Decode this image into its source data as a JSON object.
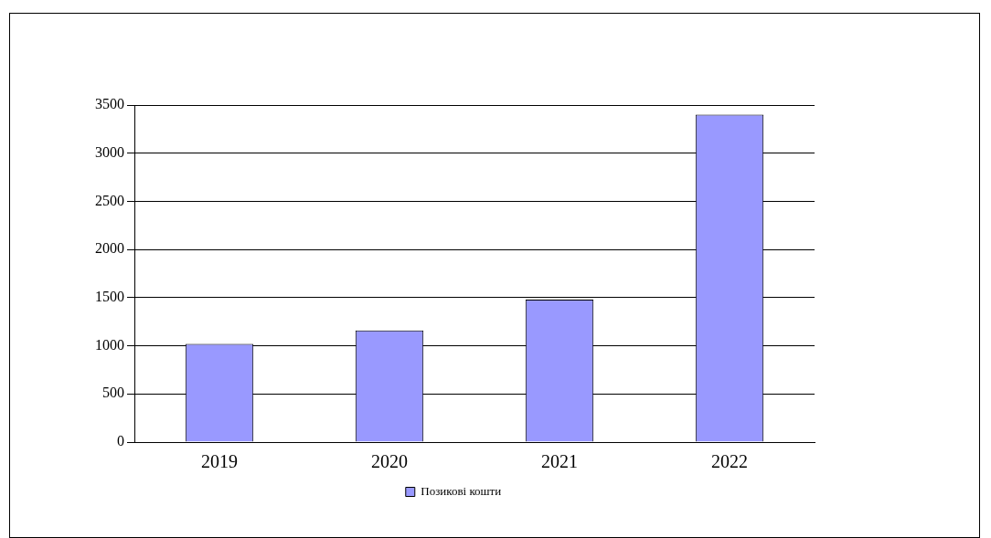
{
  "chart_data": {
    "type": "bar",
    "categories": [
      "2019",
      "2020",
      "2021",
      "2022"
    ],
    "series": [
      {
        "name": "Позикові кошти",
        "color": "#9999ff",
        "values": [
          1020,
          1160,
          1480,
          3400
        ]
      }
    ],
    "ylim": [
      0,
      3500
    ],
    "yticks": [
      0,
      500,
      1000,
      1500,
      2000,
      2500,
      3000,
      3500
    ],
    "grid": "y",
    "legend": "bottom"
  }
}
